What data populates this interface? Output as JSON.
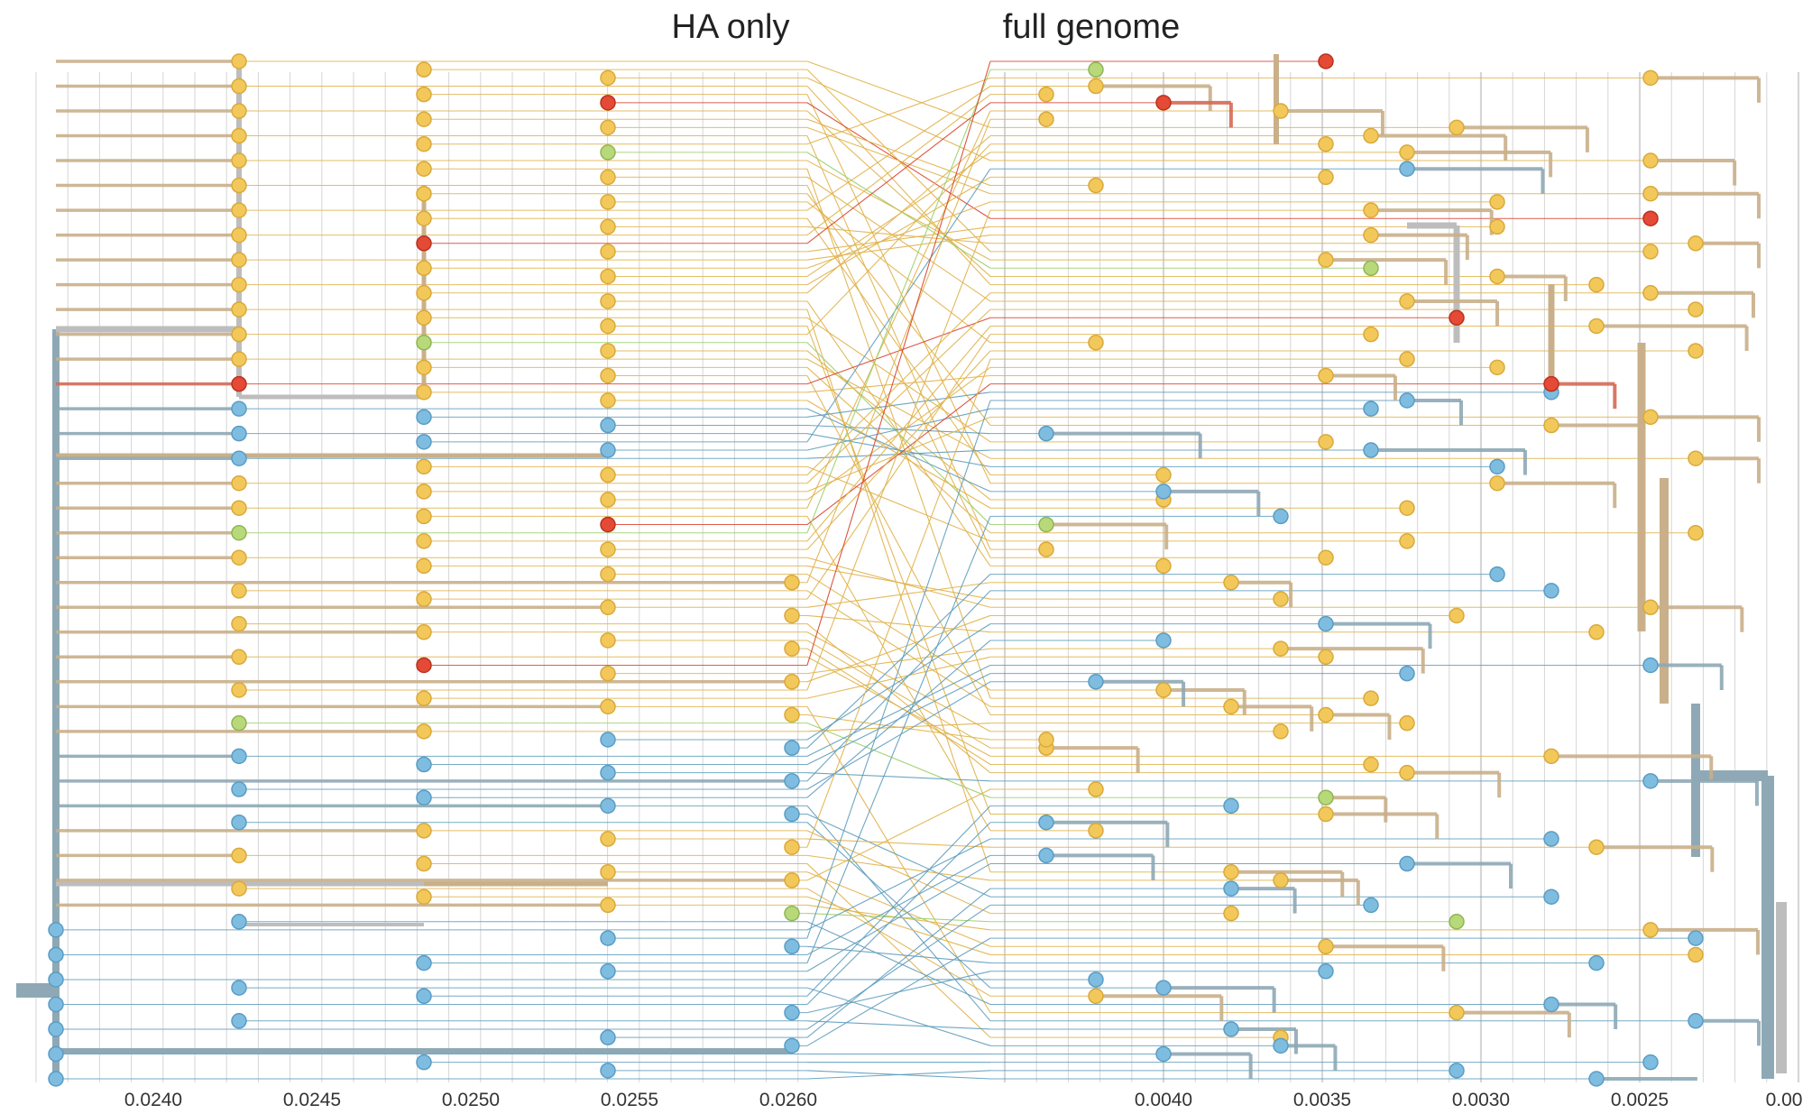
{
  "titles": {
    "left_panel": "HA only",
    "right_panel": "full genome"
  },
  "left_axis": {
    "tick_labels": [
      "0.0240",
      "0.0245",
      "0.0250",
      "0.0255",
      "0.0260"
    ]
  },
  "right_axis": {
    "tick_labels": [
      "0.0040",
      "0.0035",
      "0.0030",
      "0.0025",
      "0.00"
    ]
  },
  "colors": {
    "yellow": "#f3c85a",
    "red": "#e44a35",
    "green": "#b7d97a",
    "blue": "#7fbde0",
    "branch_gray": "#bdbdbd",
    "branch_tan": "#c9b08a",
    "branch_steel": "#8ea9b5",
    "grid": "#d6d6d6"
  },
  "chart_data": {
    "type": "tanglegram",
    "panels": [
      "HA only",
      "full genome"
    ],
    "tip_color_groups": [
      "yellow",
      "red",
      "green",
      "blue"
    ]
  }
}
